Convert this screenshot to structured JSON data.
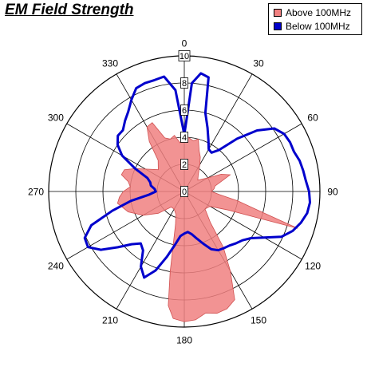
{
  "chart_data": {
    "type": "polar-line",
    "title": "EM Field Strength",
    "angle_labels": [
      "0",
      "30",
      "60",
      "90",
      "120",
      "150",
      "180",
      "210",
      "240",
      "270",
      "300",
      "330"
    ],
    "radial_labels": [
      "0",
      "2",
      "4",
      "6",
      "8",
      "10"
    ],
    "r_range": [
      0,
      10
    ],
    "grid": true,
    "legend_position": "top-right",
    "series": [
      {
        "name": "Above 100MHz",
        "style": "area",
        "color": "#f08080",
        "edge_color": "#d05050",
        "points": [
          [
            0,
            4.2
          ],
          [
            10,
            3.8
          ],
          [
            15,
            4.0
          ],
          [
            20,
            3.2
          ],
          [
            25,
            2.8
          ],
          [
            30,
            2.3
          ],
          [
            40,
            1.6
          ],
          [
            50,
            1.3
          ],
          [
            60,
            2.0
          ],
          [
            65,
            3.0
          ],
          [
            70,
            3.6
          ],
          [
            75,
            2.8
          ],
          [
            80,
            2.3
          ],
          [
            85,
            2.2
          ],
          [
            90,
            2.0
          ],
          [
            95,
            2.6
          ],
          [
            100,
            4.0
          ],
          [
            105,
            6.0
          ],
          [
            108,
            8.8
          ],
          [
            110,
            5.5
          ],
          [
            113,
            3.5
          ],
          [
            120,
            2.2
          ],
          [
            130,
            2.0
          ],
          [
            140,
            3.0
          ],
          [
            145,
            5.0
          ],
          [
            150,
            6.8
          ],
          [
            155,
            8.8
          ],
          [
            160,
            9.2
          ],
          [
            165,
            9.3
          ],
          [
            170,
            9.1
          ],
          [
            175,
            9.5
          ],
          [
            180,
            9.6
          ],
          [
            185,
            9.4
          ],
          [
            188,
            8.5
          ],
          [
            190,
            6.0
          ],
          [
            195,
            2.5
          ],
          [
            200,
            1.8
          ],
          [
            210,
            1.5
          ],
          [
            220,
            1.5
          ],
          [
            230,
            2.5
          ],
          [
            240,
            3.5
          ],
          [
            250,
            4.4
          ],
          [
            260,
            5.0
          ],
          [
            265,
            4.8
          ],
          [
            270,
            4.5
          ],
          [
            275,
            4.0
          ],
          [
            280,
            4.2
          ],
          [
            285,
            4.8
          ],
          [
            290,
            4.7
          ],
          [
            295,
            4.0
          ],
          [
            300,
            3.3
          ],
          [
            310,
            2.5
          ],
          [
            320,
            3.0
          ],
          [
            325,
            4.5
          ],
          [
            330,
            5.5
          ],
          [
            335,
            5.6
          ],
          [
            340,
            4.2
          ],
          [
            345,
            4.0
          ],
          [
            350,
            4.2
          ],
          [
            355,
            3.6
          ]
        ]
      },
      {
        "name": "Below 100MHz",
        "style": "line",
        "color": "#0000cc",
        "points": [
          [
            0,
            4.2
          ],
          [
            2,
            5.5
          ],
          [
            4,
            8.0
          ],
          [
            8,
            8.8
          ],
          [
            12,
            8.6
          ],
          [
            15,
            6.0
          ],
          [
            20,
            5.0
          ],
          [
            25,
            4.2
          ],
          [
            30,
            3.6
          ],
          [
            35,
            3.5
          ],
          [
            40,
            4.0
          ],
          [
            45,
            5.5
          ],
          [
            50,
            7.0
          ],
          [
            55,
            8.1
          ],
          [
            60,
            8.5
          ],
          [
            65,
            8.6
          ],
          [
            70,
            8.6
          ],
          [
            75,
            8.8
          ],
          [
            80,
            8.9
          ],
          [
            85,
            9.0
          ],
          [
            90,
            9.2
          ],
          [
            95,
            9.3
          ],
          [
            100,
            9.2
          ],
          [
            105,
            8.9
          ],
          [
            110,
            8.5
          ],
          [
            115,
            7.9
          ],
          [
            120,
            6.8
          ],
          [
            125,
            6.0
          ],
          [
            130,
            5.6
          ],
          [
            135,
            5.4
          ],
          [
            140,
            5.2
          ],
          [
            145,
            5.1
          ],
          [
            150,
            5.0
          ],
          [
            155,
            4.7
          ],
          [
            160,
            4.1
          ],
          [
            165,
            3.6
          ],
          [
            170,
            3.2
          ],
          [
            175,
            3.0
          ],
          [
            180,
            3.1
          ],
          [
            185,
            3.3
          ],
          [
            190,
            4.0
          ],
          [
            195,
            5.0
          ],
          [
            200,
            6.2
          ],
          [
            205,
            7.0
          ],
          [
            210,
            6.4
          ],
          [
            215,
            5.3
          ],
          [
            220,
            5.0
          ],
          [
            225,
            5.5
          ],
          [
            230,
            6.4
          ],
          [
            235,
            7.5
          ],
          [
            240,
            8.2
          ],
          [
            245,
            8.1
          ],
          [
            250,
            7.3
          ],
          [
            255,
            5.5
          ],
          [
            260,
            4.0
          ],
          [
            265,
            2.6
          ],
          [
            270,
            2.1
          ],
          [
            275,
            2.2
          ],
          [
            280,
            2.5
          ],
          [
            285,
            2.6
          ],
          [
            290,
            2.9
          ],
          [
            295,
            4.0
          ],
          [
            300,
            5.3
          ],
          [
            305,
            6.0
          ],
          [
            310,
            6.4
          ],
          [
            315,
            6.4
          ],
          [
            320,
            6.8
          ],
          [
            325,
            7.2
          ],
          [
            330,
            7.8
          ],
          [
            335,
            8.4
          ],
          [
            340,
            8.5
          ],
          [
            345,
            8.5
          ],
          [
            350,
            8.6
          ],
          [
            355,
            7.5
          ]
        ]
      }
    ]
  }
}
